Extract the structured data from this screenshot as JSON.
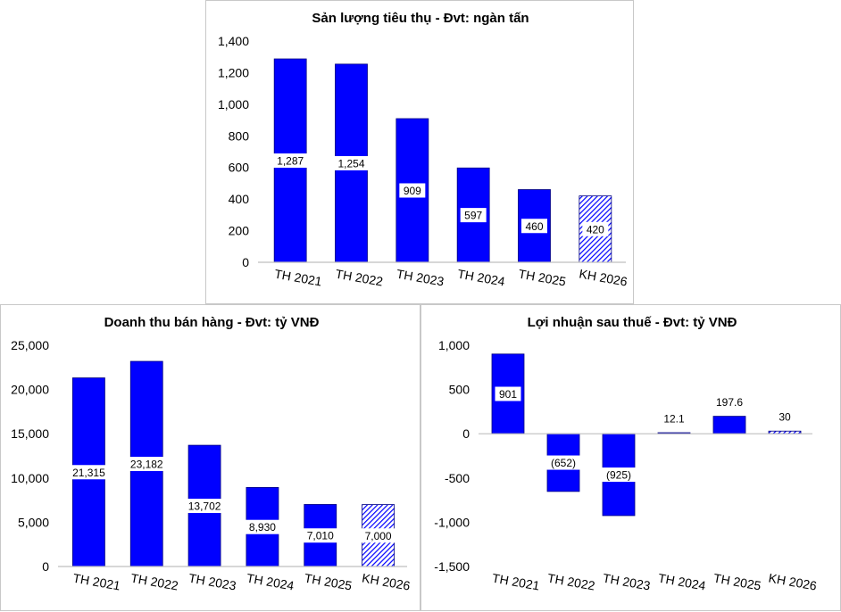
{
  "colors": {
    "bar": "#0000FF",
    "bar_outline": "#000080",
    "axis": "#bfbfbf"
  },
  "chart_data": [
    {
      "type": "bar",
      "title": "Sản lượng tiêu thụ - Đvt: ngàn tấn",
      "categories": [
        "TH 2021",
        "TH 2022",
        "TH 2023",
        "TH 2024",
        "TH 2025",
        "KH 2026"
      ],
      "values": [
        1287,
        1254,
        909,
        597,
        460,
        420
      ],
      "value_labels": [
        "1,287",
        "1,254",
        "909",
        "597",
        "460",
        "420"
      ],
      "hatched": [
        false,
        false,
        false,
        false,
        false,
        true
      ],
      "ylim": [
        0,
        1400
      ],
      "yticks": [
        0,
        200,
        400,
        600,
        800,
        1000,
        1200,
        1400
      ],
      "ytick_labels": [
        "0",
        "200",
        "400",
        "600",
        "800",
        "1,000",
        "1,200",
        "1,400"
      ],
      "grid": false,
      "legend": "none"
    },
    {
      "type": "bar",
      "title": "Doanh thu bán hàng - Đvt: tỷ VNĐ",
      "categories": [
        "TH 2021",
        "TH 2022",
        "TH 2023",
        "TH 2024",
        "TH 2025",
        "KH 2026"
      ],
      "values": [
        21315,
        23182,
        13702,
        8930,
        7010,
        7000
      ],
      "value_labels": [
        "21,315",
        "23,182",
        "13,702",
        "8,930",
        "7,010",
        "7,000"
      ],
      "hatched": [
        false,
        false,
        false,
        false,
        false,
        true
      ],
      "ylim": [
        0,
        25000
      ],
      "yticks": [
        0,
        5000,
        10000,
        15000,
        20000,
        25000
      ],
      "ytick_labels": [
        "0",
        "5,000",
        "10,000",
        "15,000",
        "20,000",
        "25,000"
      ],
      "grid": false,
      "legend": "none"
    },
    {
      "type": "bar",
      "title": "Lợi nhuận sau thuế - Đvt: tỷ VNĐ",
      "categories": [
        "TH 2021",
        "TH 2022",
        "TH 2023",
        "TH 2024",
        "TH 2025",
        "KH 2026"
      ],
      "values": [
        901,
        -652,
        -925,
        12.1,
        197.6,
        30
      ],
      "value_labels": [
        "901",
        "(652)",
        "(925)",
        "12.1",
        "197.6",
        "30"
      ],
      "hatched": [
        false,
        false,
        false,
        false,
        false,
        true
      ],
      "ylim": [
        -1500,
        1000
      ],
      "yticks": [
        -1500,
        -1000,
        -500,
        0,
        500,
        1000
      ],
      "ytick_labels": [
        "-1,500",
        "-1,000",
        "-500",
        "0",
        "500",
        "1,000"
      ],
      "grid": false,
      "legend": "none"
    }
  ]
}
